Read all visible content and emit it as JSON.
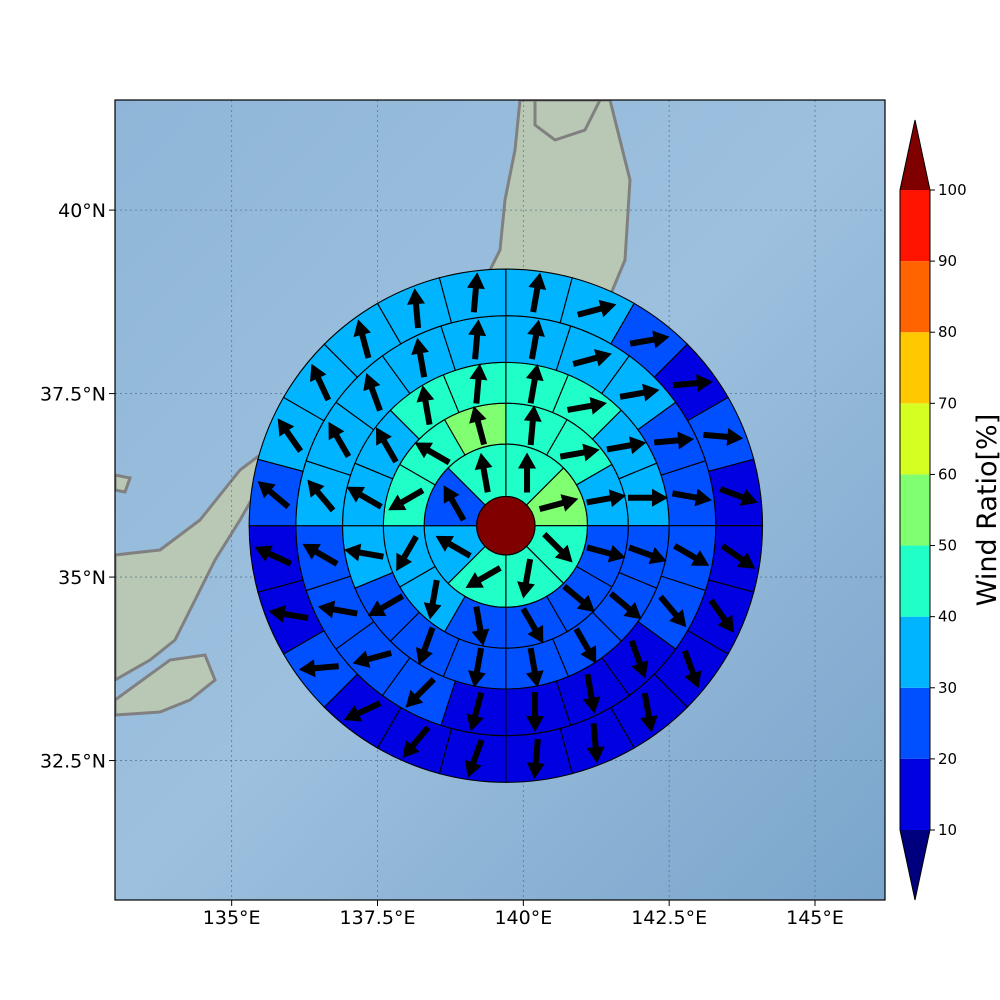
{
  "map": {
    "lon_range": [
      133.0,
      146.2
    ],
    "lat_range": [
      30.6,
      41.5
    ],
    "lon_ticks": [
      {
        "value": 135.0,
        "label": "135°E"
      },
      {
        "value": 137.5,
        "label": "137.5°E"
      },
      {
        "value": 140.0,
        "label": "140°E"
      },
      {
        "value": 142.5,
        "label": "142.5°E"
      },
      {
        "value": 145.0,
        "label": "145°E"
      }
    ],
    "lat_ticks": [
      {
        "value": 32.5,
        "label": "32.5°N"
      },
      {
        "value": 35.0,
        "label": "35°N"
      },
      {
        "value": 37.5,
        "label": "37.5°N"
      },
      {
        "value": 40.0,
        "label": "40°N"
      }
    ],
    "gridlines": true,
    "colors": {
      "ocean": "#86aed1",
      "land": "#b9c8b5",
      "coastline": "#808080",
      "center_disk": "#800000",
      "arrow": "#000000",
      "ring_edge": "#000000"
    }
  },
  "chart_data": {
    "type": "polar-sector-map",
    "center": {
      "lon": 139.7,
      "lat": 35.7
    },
    "rings_deg": [
      0.5,
      1.4,
      2.1,
      2.8,
      3.6,
      4.4
    ],
    "sectors_per_ring": [
      8,
      12,
      16,
      20,
      24
    ],
    "values": [
      [
        45,
        55,
        45,
        45,
        45,
        35,
        25,
        45
      ],
      [
        45,
        45,
        35,
        25,
        25,
        20,
        25,
        35,
        35,
        45,
        45,
        55
      ],
      [
        45,
        45,
        35,
        35,
        25,
        20,
        20,
        20,
        20,
        20,
        25,
        35,
        35,
        35,
        45,
        45
      ],
      [
        35,
        35,
        35,
        25,
        25,
        20,
        20,
        15,
        15,
        15,
        15,
        20,
        20,
        20,
        25,
        35,
        35,
        35,
        35,
        35
      ],
      [
        35,
        35,
        25,
        15,
        25,
        15,
        15,
        15,
        15,
        15,
        15,
        15,
        15,
        15,
        15,
        20,
        15,
        15,
        25,
        35,
        35,
        35,
        35,
        35
      ]
    ],
    "directions": [
      [
        0,
        75,
        135,
        190,
        240,
        300,
        330,
        350
      ],
      [
        5,
        80,
        80,
        105,
        130,
        150,
        170,
        190,
        210,
        240,
        300,
        345
      ],
      [
        10,
        80,
        80,
        90,
        110,
        130,
        150,
        170,
        190,
        200,
        240,
        280,
        300,
        330,
        350,
        5
      ],
      [
        10,
        75,
        80,
        85,
        100,
        120,
        140,
        160,
        170,
        180,
        195,
        225,
        255,
        280,
        300,
        320,
        330,
        340,
        350,
        5
      ],
      [
        10,
        75,
        80,
        85,
        95,
        110,
        125,
        145,
        160,
        170,
        175,
        185,
        200,
        220,
        245,
        265,
        280,
        295,
        310,
        325,
        335,
        345,
        355,
        5
      ]
    ],
    "colorbar": {
      "label": "Wind Ratio[%]",
      "levels": [
        10,
        20,
        30,
        40,
        50,
        60,
        70,
        80,
        90,
        100
      ],
      "colors": [
        "#0000e0",
        "#0050ff",
        "#00b4ff",
        "#20ffc8",
        "#80ff70",
        "#d4ff20",
        "#ffc800",
        "#ff6400",
        "#ff1400"
      ],
      "under_color": "#00007f",
      "over_color": "#800000",
      "tick_labels": [
        "10",
        "20",
        "30",
        "40",
        "50",
        "60",
        "70",
        "80",
        "90",
        "100"
      ]
    }
  }
}
